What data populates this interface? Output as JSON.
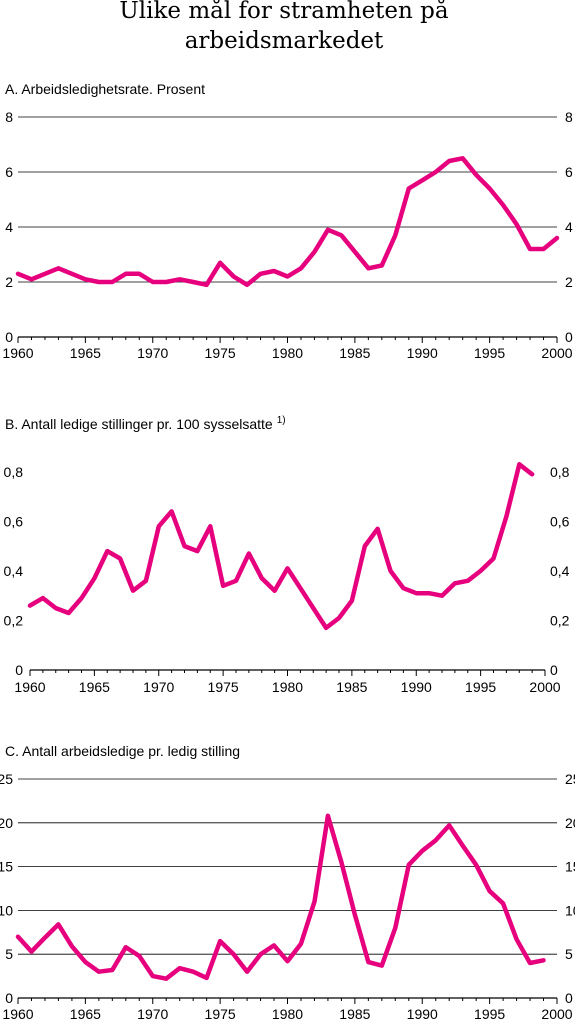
{
  "figure": {
    "title_line1": "Ulike mål for stramheten på",
    "title_line2": "arbeidsmarkedet"
  },
  "colors": {
    "series": "#e6007e"
  },
  "chart_data": [
    {
      "type": "line",
      "title": "A.  Arbeidsledighetsrate. Prosent",
      "title_superscript": "",
      "xlim": [
        1960,
        2000
      ],
      "ylim": [
        0,
        8
      ],
      "x_ticks": [
        1960,
        1965,
        1970,
        1975,
        1980,
        1985,
        1990,
        1995,
        2000
      ],
      "y_ticks": [
        0,
        2,
        4,
        6,
        8
      ],
      "y_tick_labels": [
        "0",
        "2",
        "4",
        "6",
        "8"
      ],
      "grid": true,
      "series": [
        {
          "x": [
            1960,
            1961,
            1962,
            1963,
            1964,
            1965,
            1966,
            1967,
            1968,
            1969,
            1970,
            1971,
            1972,
            1973,
            1974,
            1975,
            1976,
            1977,
            1978,
            1979,
            1980,
            1981,
            1982,
            1983,
            1984,
            1985,
            1986,
            1987,
            1988,
            1989,
            1990,
            1991,
            1992,
            1993,
            1994,
            1995,
            1996,
            1997,
            1998,
            1999,
            2000
          ],
          "y": [
            2.3,
            2.1,
            2.3,
            2.5,
            2.3,
            2.1,
            2.0,
            2.0,
            2.3,
            2.3,
            2.0,
            2.0,
            2.1,
            2.0,
            1.9,
            2.7,
            2.2,
            1.9,
            2.3,
            2.4,
            2.2,
            2.5,
            3.1,
            3.9,
            3.7,
            3.1,
            2.5,
            2.6,
            3.7,
            5.4,
            5.7,
            6.0,
            6.4,
            6.5,
            5.9,
            5.4,
            4.8,
            4.1,
            3.2,
            3.2,
            3.6
          ]
        }
      ]
    },
    {
      "type": "line",
      "title": "B.  Antall ledige stillinger pr. 100 sysselsatte",
      "title_superscript": "1)",
      "xlim": [
        1960,
        2000
      ],
      "ylim": [
        0,
        0.9
      ],
      "x_ticks": [
        1960,
        1965,
        1970,
        1975,
        1980,
        1985,
        1990,
        1995,
        2000
      ],
      "y_ticks": [
        0,
        0.2,
        0.4,
        0.6,
        0.8
      ],
      "y_tick_labels": [
        "0",
        "0,2",
        "0,4",
        "0,6",
        "0,8"
      ],
      "grid": false,
      "series": [
        {
          "x": [
            1960,
            1961,
            1962,
            1963,
            1964,
            1965,
            1966,
            1967,
            1968,
            1969,
            1970,
            1971,
            1972,
            1973,
            1974,
            1975,
            1976,
            1977,
            1978,
            1979,
            1980,
            1981,
            1982,
            1983,
            1984,
            1985,
            1986,
            1987,
            1988,
            1989,
            1990,
            1991,
            1992,
            1993,
            1994,
            1995,
            1996,
            1997,
            1998,
            1999
          ],
          "y": [
            0.26,
            0.29,
            0.25,
            0.23,
            0.29,
            0.37,
            0.48,
            0.45,
            0.32,
            0.36,
            0.58,
            0.64,
            0.5,
            0.48,
            0.58,
            0.34,
            0.36,
            0.47,
            0.37,
            0.32,
            0.41,
            0.33,
            0.25,
            0.17,
            0.21,
            0.28,
            0.5,
            0.57,
            0.4,
            0.33,
            0.31,
            0.31,
            0.3,
            0.35,
            0.36,
            0.4,
            0.45,
            0.62,
            0.83,
            0.79
          ]
        }
      ]
    },
    {
      "type": "line",
      "title": "C.  Antall arbeidsledige pr. ledig stilling",
      "title_superscript": "",
      "xlim": [
        1960,
        2000
      ],
      "ylim": [
        0,
        25
      ],
      "x_ticks": [
        1960,
        1965,
        1970,
        1975,
        1980,
        1985,
        1990,
        1995,
        2000
      ],
      "y_ticks": [
        0,
        5,
        10,
        15,
        20,
        25
      ],
      "y_tick_labels": [
        "0",
        "5",
        "10",
        "15",
        "20",
        "25"
      ],
      "grid": true,
      "series": [
        {
          "x": [
            1960,
            1961,
            1962,
            1963,
            1964,
            1965,
            1966,
            1967,
            1968,
            1969,
            1970,
            1971,
            1972,
            1973,
            1974,
            1975,
            1976,
            1977,
            1978,
            1979,
            1980,
            1981,
            1982,
            1983,
            1984,
            1985,
            1986,
            1987,
            1988,
            1989,
            1990,
            1991,
            1992,
            1993,
            1994,
            1995,
            1996,
            1997,
            1998,
            1999
          ],
          "y": [
            7.0,
            5.3,
            6.9,
            8.4,
            5.9,
            4.1,
            3.0,
            3.2,
            5.8,
            4.8,
            2.5,
            2.2,
            3.4,
            3.0,
            2.3,
            6.5,
            5.0,
            3.0,
            5.0,
            6.0,
            4.2,
            6.2,
            11.0,
            20.8,
            15.5,
            9.5,
            4.1,
            3.7,
            8.0,
            15.2,
            16.8,
            18.0,
            19.7,
            17.4,
            15.2,
            12.2,
            10.8,
            6.7,
            4.0,
            4.3
          ]
        }
      ]
    }
  ]
}
